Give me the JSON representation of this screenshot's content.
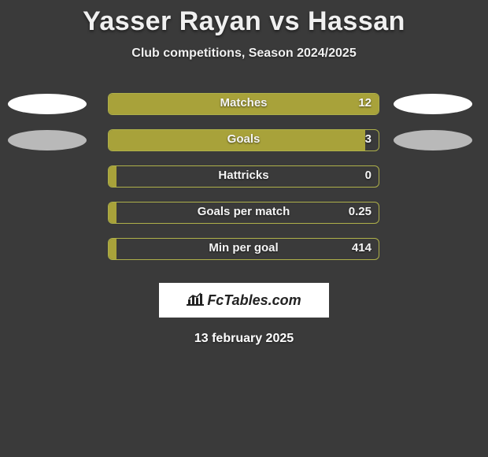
{
  "title": "Yasser Rayan vs Hassan",
  "subtitle": "Club competitions, Season 2024/2025",
  "date": "13 february 2025",
  "logo_text": "FcTables.com",
  "colors": {
    "background": "#3a3a3a",
    "bar_fill": "#a8a23a",
    "bar_border": "#aeb04a",
    "ellipse_bright": "#ffffff",
    "ellipse_dim": "#b9b9b9",
    "text": "#f0f0f0"
  },
  "chart": {
    "type": "bar",
    "bar_track_width": 345,
    "bar_track_height": 28,
    "bar_border_radius": 6,
    "label_fontsize": 15,
    "title_fontsize": 34,
    "subtitle_fontsize": 16
  },
  "stats": [
    {
      "label": "Matches",
      "value": "12",
      "fill_pct": 100,
      "show_ellipses": true,
      "left_dim": false,
      "right_dim": false
    },
    {
      "label": "Goals",
      "value": "3",
      "fill_pct": 95,
      "show_ellipses": true,
      "left_dim": true,
      "right_dim": true
    },
    {
      "label": "Hattricks",
      "value": "0",
      "fill_pct": 3,
      "show_ellipses": false
    },
    {
      "label": "Goals per match",
      "value": "0.25",
      "fill_pct": 3,
      "show_ellipses": false
    },
    {
      "label": "Min per goal",
      "value": "414",
      "fill_pct": 3,
      "show_ellipses": false
    }
  ]
}
